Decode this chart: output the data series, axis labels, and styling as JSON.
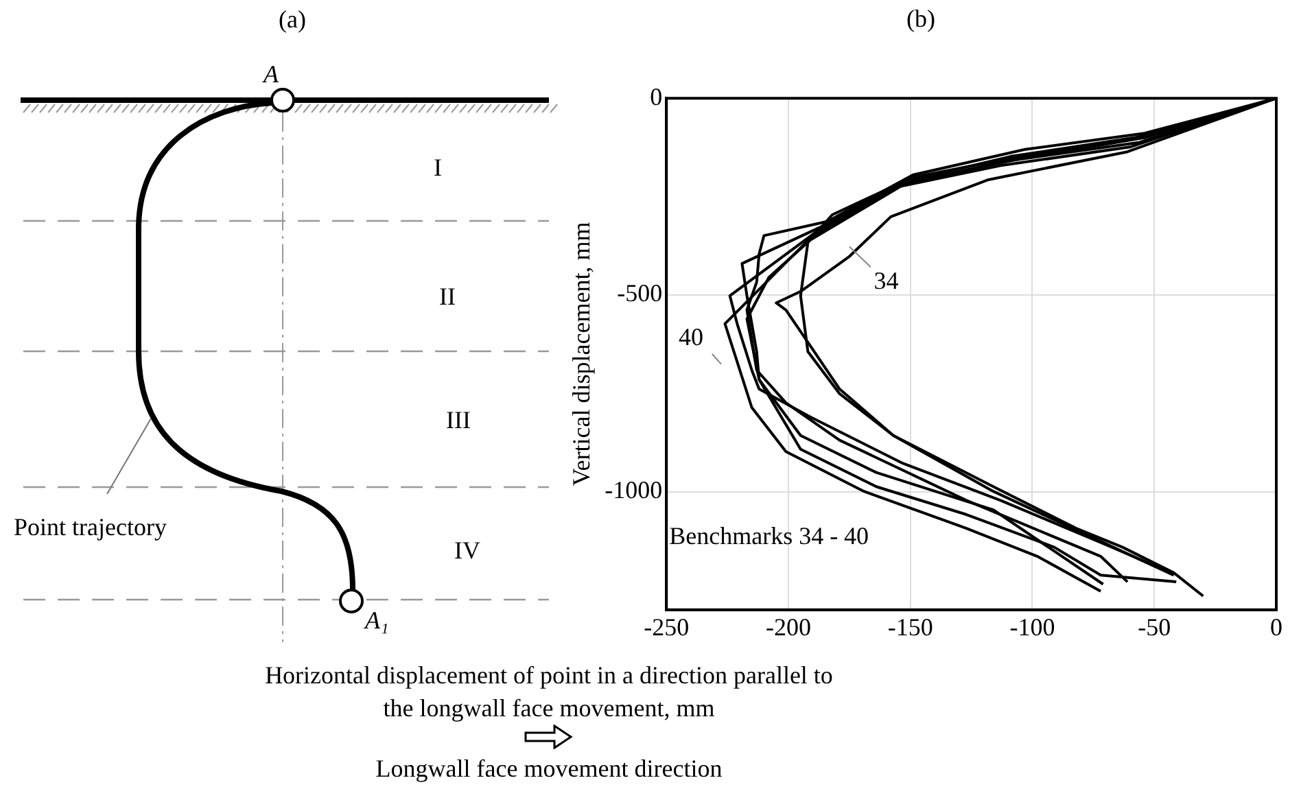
{
  "chart_data": [
    {
      "type": "other",
      "title": "(a)",
      "annotations": [
        "A",
        "I",
        "II",
        "III",
        "IV",
        "Point trajectory",
        "A₁"
      ]
    },
    {
      "type": "line",
      "title": "(b)",
      "xlabel": "Horizontal displacement of point in a direction parallel to the longwall face movement, mm",
      "ylabel": "Vertical displacement, mm",
      "xlim": [
        -250,
        0
      ],
      "xticks": [
        -250,
        -200,
        -150,
        -100,
        -50,
        0
      ],
      "ylim": [
        -1300,
        0
      ],
      "yticks": [
        -1000,
        -500,
        0
      ],
      "grid": true,
      "annotations": [
        "34",
        "40",
        "Benchmarks 34 - 40",
        "Longwall face movement direction"
      ],
      "series": [
        {
          "color": "#000000",
          "x": [
            0,
            -61,
            -118,
            -158,
            -175,
            -195,
            -205,
            -201,
            -179,
            -157,
            -116,
            -82,
            -63,
            -42,
            -30
          ],
          "values": [
            0,
            -136,
            -207,
            -301,
            -402,
            -491,
            -520,
            -538,
            -739,
            -857,
            -987,
            -1093,
            -1141,
            -1206,
            -1265
          ]
        },
        {
          "color": "#000000",
          "x": [
            0,
            -54,
            -105,
            -149,
            -182,
            -192,
            -195,
            -192,
            -179,
            -157,
            -116,
            -63,
            -42
          ],
          "values": [
            0,
            -100,
            -148,
            -201,
            -296,
            -366,
            -502,
            -644,
            -751,
            -857,
            -999,
            -1152,
            -1212
          ]
        },
        {
          "color": "#000000",
          "x": [
            0,
            -54,
            -103,
            -149,
            -184,
            -210,
            -212,
            -213,
            -217,
            -213,
            -201,
            -179,
            -127,
            -72,
            -61
          ],
          "values": [
            0,
            -89,
            -130,
            -195,
            -313,
            -349,
            -396,
            -467,
            -538,
            -691,
            -774,
            -869,
            -1022,
            -1164,
            -1229
          ]
        },
        {
          "color": "#000000",
          "x": [
            0,
            -58,
            -109,
            -153,
            -186,
            -219,
            -217,
            -213,
            -212,
            -195,
            -164,
            -116,
            -71
          ],
          "values": [
            0,
            -100,
            -148,
            -213,
            -325,
            -420,
            -502,
            -644,
            -715,
            -857,
            -951,
            -1046,
            -1235
          ]
        },
        {
          "color": "#000000",
          "x": [
            0,
            -56,
            -111,
            -153,
            -188,
            -224,
            -221,
            -215,
            -212,
            -191,
            -153,
            -113,
            -72,
            -43
          ],
          "values": [
            0,
            -112,
            -160,
            -219,
            -337,
            -502,
            -573,
            -691,
            -739,
            -810,
            -928,
            -1022,
            -1129,
            -1206
          ]
        },
        {
          "color": "#000000",
          "x": [
            0,
            -60,
            -113,
            -155,
            -190,
            -226,
            -215,
            -201,
            -169,
            -127,
            -98,
            -72
          ],
          "values": [
            0,
            -124,
            -171,
            -225,
            -349,
            -573,
            -786,
            -898,
            -999,
            -1093,
            -1164,
            -1253
          ]
        },
        {
          "color": "#000000",
          "x": [
            0,
            -54,
            -105,
            -151,
            -191,
            -208,
            -217,
            -212,
            -195,
            -164,
            -127,
            -91,
            -72,
            -41
          ],
          "values": [
            0,
            -100,
            -154,
            -213,
            -360,
            -455,
            -561,
            -715,
            -892,
            -987,
            -1058,
            -1141,
            -1212,
            -1229
          ]
        }
      ]
    }
  ]
}
